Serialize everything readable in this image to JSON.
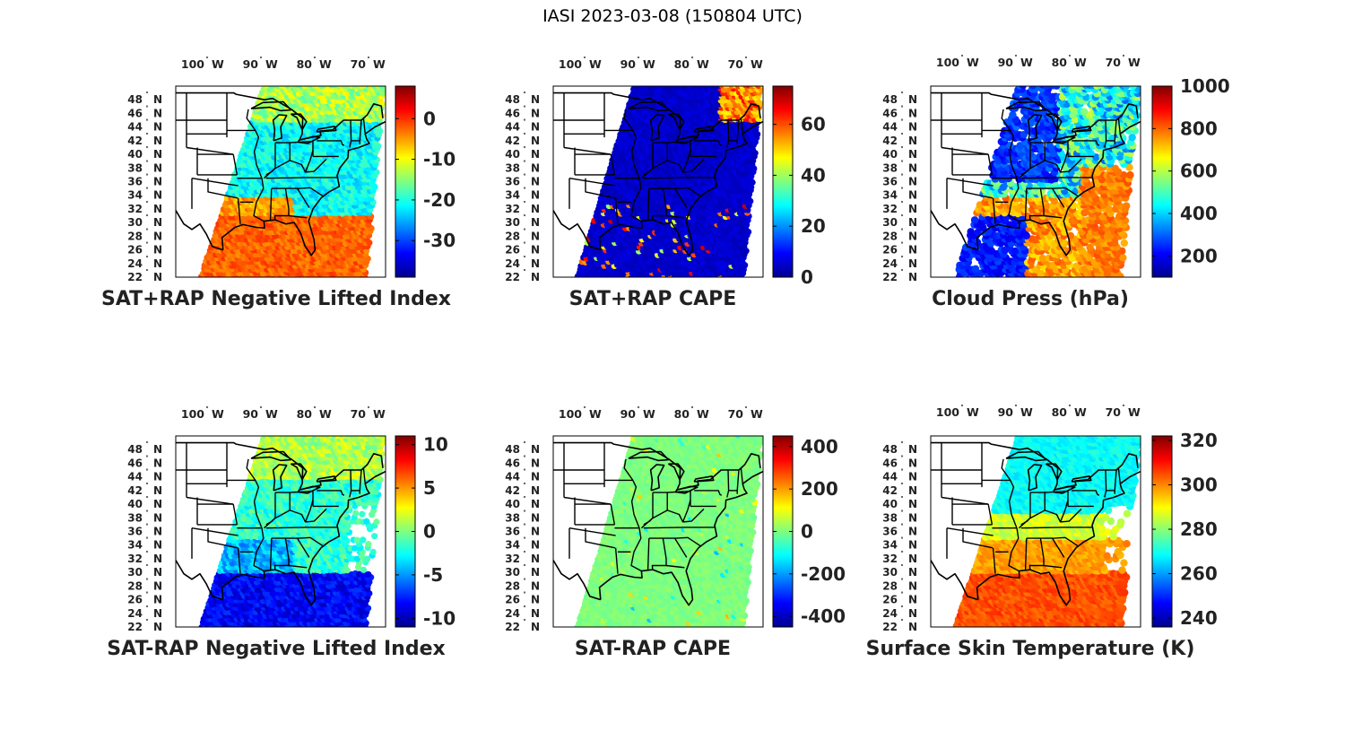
{
  "figure": {
    "title": "IASI 2023-03-08 (150804 UTC)"
  },
  "axes": {
    "lon_ticks": [
      {
        "value": -100,
        "text": "100",
        "hem": "W"
      },
      {
        "value": -90,
        "text": "90",
        "hem": "W"
      },
      {
        "value": -80,
        "text": "80",
        "hem": "W"
      },
      {
        "value": -70,
        "text": "70",
        "hem": "W"
      }
    ],
    "lat_ticks": [
      {
        "value": 48,
        "text": "48",
        "hem": "N"
      },
      {
        "value": 46,
        "text": "46",
        "hem": "N"
      },
      {
        "value": 44,
        "text": "44",
        "hem": "N"
      },
      {
        "value": 42,
        "text": "42",
        "hem": "N"
      },
      {
        "value": 40,
        "text": "40",
        "hem": "N"
      },
      {
        "value": 38,
        "text": "38",
        "hem": "N"
      },
      {
        "value": 36,
        "text": "36",
        "hem": "N"
      },
      {
        "value": 34,
        "text": "34",
        "hem": "N"
      },
      {
        "value": 32,
        "text": "32",
        "hem": "N"
      },
      {
        "value": 30,
        "text": "30",
        "hem": "N"
      },
      {
        "value": 28,
        "text": "28",
        "hem": "N"
      },
      {
        "value": 26,
        "text": "26",
        "hem": "N"
      },
      {
        "value": 24,
        "text": "24",
        "hem": "N"
      },
      {
        "value": 22,
        "text": "22",
        "hem": "N"
      }
    ],
    "lon_range": [
      -106,
      -67
    ],
    "lat_range": [
      22,
      50
    ],
    "colormap": "jet"
  },
  "chart_data": [
    {
      "type": "heatmap",
      "title": "SAT+RAP Negative Lifted Index",
      "colorbar_range": [
        -39,
        8
      ],
      "colorbar_ticks": [
        "0",
        "-10",
        "-20",
        "-30"
      ],
      "colorbar_tick_values": [
        0,
        -10,
        -20,
        -30
      ]
    },
    {
      "type": "heatmap",
      "title": "SAT+RAP CAPE",
      "colorbar_range": [
        0,
        75
      ],
      "colorbar_ticks": [
        "60",
        "40",
        "20",
        "0"
      ],
      "colorbar_tick_values": [
        60,
        40,
        20,
        0
      ]
    },
    {
      "type": "heatmap",
      "title": "Cloud Press (hPa)",
      "colorbar_range": [
        100,
        1000
      ],
      "colorbar_ticks": [
        "1000",
        "800",
        "600",
        "400",
        "200"
      ],
      "colorbar_tick_values": [
        1000,
        800,
        600,
        400,
        200
      ]
    },
    {
      "type": "heatmap",
      "title": "SAT-RAP Negative Lifted Index",
      "colorbar_range": [
        -11,
        11
      ],
      "colorbar_ticks": [
        "10",
        "5",
        "0",
        "-5",
        "-10"
      ],
      "colorbar_tick_values": [
        10,
        5,
        0,
        -5,
        -10
      ]
    },
    {
      "type": "heatmap",
      "title": "SAT-RAP CAPE",
      "colorbar_range": [
        -450,
        450
      ],
      "colorbar_ticks": [
        "400",
        "200",
        "0",
        "-200",
        "-400"
      ],
      "colorbar_tick_values": [
        400,
        200,
        0,
        -200,
        -400
      ]
    },
    {
      "type": "heatmap",
      "title": "Surface Skin Temperature (K)",
      "colorbar_range": [
        236,
        322
      ],
      "colorbar_ticks": [
        "320",
        "300",
        "280",
        "260",
        "240"
      ],
      "colorbar_tick_values": [
        320,
        300,
        280,
        260,
        240
      ]
    }
  ]
}
